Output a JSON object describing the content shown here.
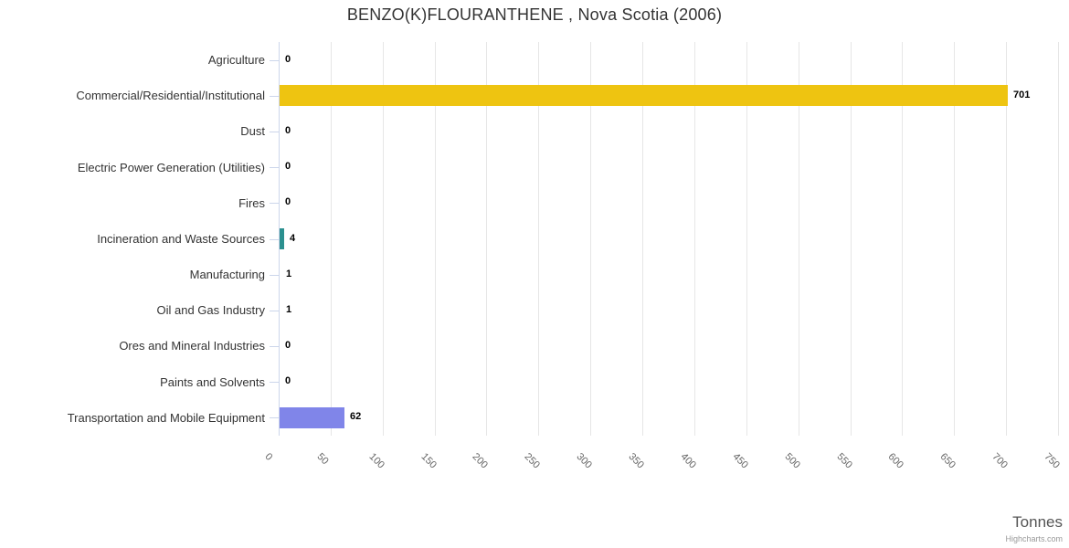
{
  "chart_data": {
    "type": "bar",
    "orientation": "horizontal",
    "title": "BENZO(K)FLOURANTHENE , Nova Scotia (2006)",
    "ylabel": "Tonnes",
    "categories": [
      "Agriculture",
      "Commercial/Residential/Institutional",
      "Dust",
      "Electric Power Generation (Utilities)",
      "Fires",
      "Incineration and Waste Sources",
      "Manufacturing",
      "Oil and Gas Industry",
      "Ores and Mineral Industries",
      "Paints and Solvents",
      "Transportation and Mobile Equipment"
    ],
    "values": [
      0,
      701,
      0,
      0,
      0,
      4,
      1,
      1,
      0,
      0,
      62
    ],
    "data_labels": [
      "0",
      "701",
      "0",
      "0",
      "0",
      "4",
      "1",
      "1",
      "0",
      "0",
      "62"
    ],
    "bar_colors": [
      null,
      "#eec411",
      null,
      null,
      null,
      "#2b908f",
      null,
      null,
      null,
      null,
      "#8085e9"
    ],
    "value_axis": {
      "min": 0,
      "max": 750,
      "tick_interval": 50,
      "tick_labels": [
        "0",
        "50",
        "100",
        "150",
        "200",
        "250",
        "300",
        "350",
        "400",
        "450",
        "500",
        "550",
        "600",
        "650",
        "700",
        "750"
      ]
    },
    "grid": true,
    "legend": false
  },
  "credit": "Highcharts.com",
  "colors": {
    "grid": "#e6e6e6",
    "axis_line": "#ccd6eb",
    "title_text": "#333333",
    "category_label": "#333333",
    "tick_label": "#666666",
    "data_label": "#000000",
    "axis_title": "#555555",
    "credit_text": "#999999"
  }
}
